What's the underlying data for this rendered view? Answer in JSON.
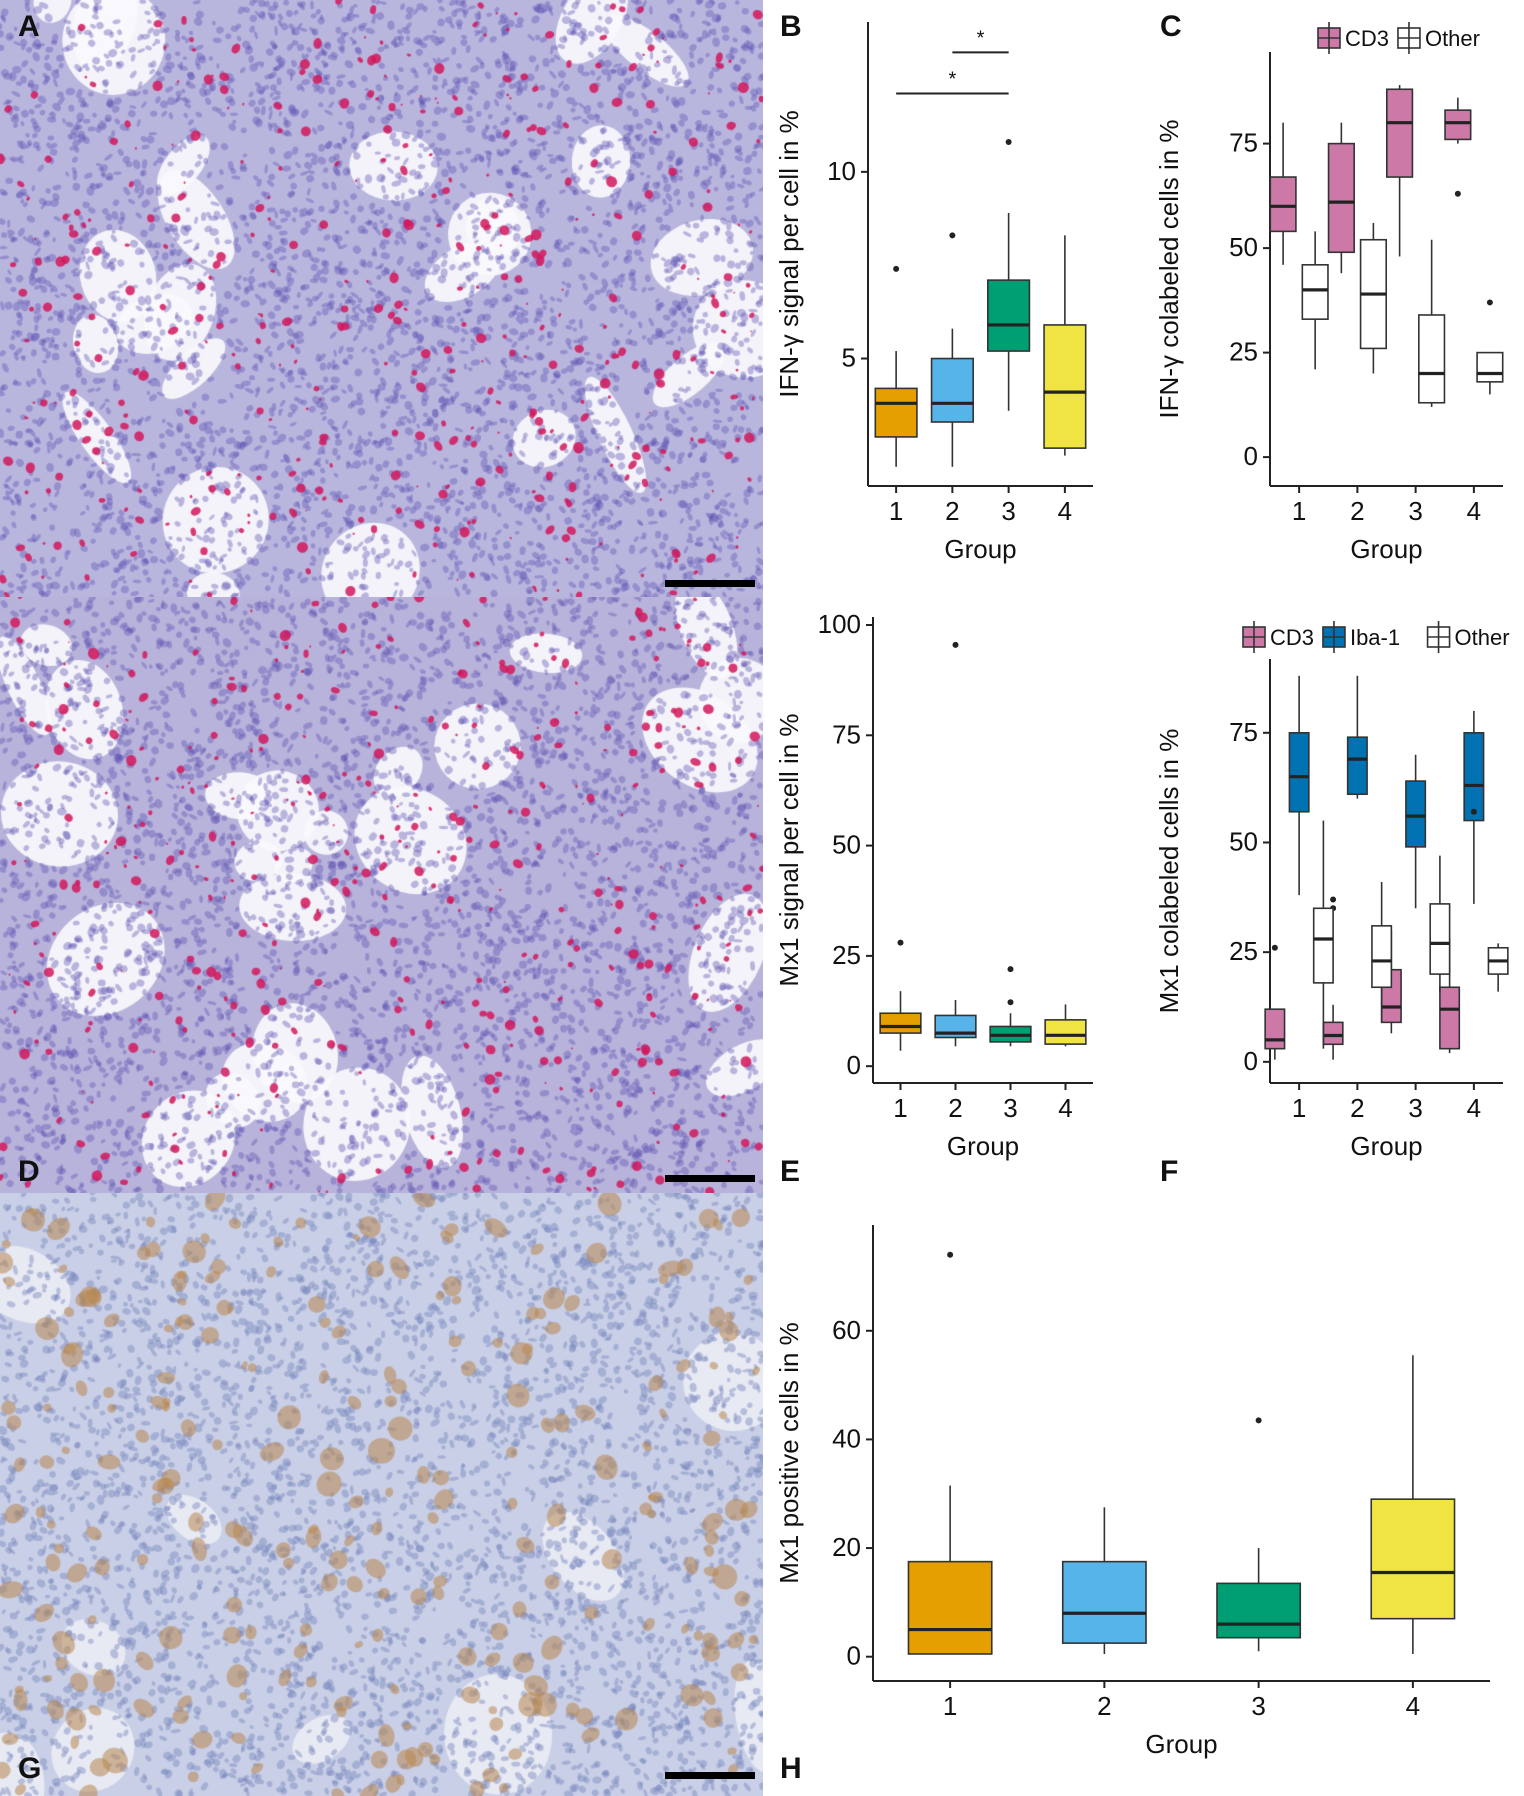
{
  "panels": {
    "A": {
      "letter": "A"
    },
    "B": {
      "letter": "B"
    },
    "C": {
      "letter": "C"
    },
    "D": {
      "letter": "D"
    },
    "E": {
      "letter": "E"
    },
    "F": {
      "letter": "F"
    },
    "G": {
      "letter": "G"
    },
    "H": {
      "letter": "H"
    }
  },
  "micrographs": {
    "A": {
      "stain": "purple counterstain with red ISH dots",
      "base_color": "#b9b6de",
      "signal_color": "#d2185c"
    },
    "D": {
      "stain": "purple counterstain with red ISH dots",
      "base_color": "#b8b3db",
      "signal_color": "#d2185c"
    },
    "G": {
      "stain": "blue counterstain with brown IHC",
      "base_color": "#c9cfe6",
      "signal_color": "#b8864e"
    }
  },
  "colors": {
    "group1": "#e69f00",
    "group2": "#56b4e9",
    "group3": "#009e73",
    "group4": "#f0e442",
    "cd3": "#cc79a7",
    "iba1": "#0072b2",
    "other": "#ffffff"
  },
  "chart_data": [
    {
      "panel": "B",
      "type": "box",
      "xlabel": "Group",
      "ylabel": "IFN-γ signal per cell in %",
      "categories": [
        "1",
        "2",
        "3",
        "4"
      ],
      "ylim": [
        1.8,
        13.8
      ],
      "yticks": [
        5,
        10
      ],
      "boxes": [
        {
          "category": "1",
          "whisker_low": 2.1,
          "q1": 2.9,
          "median": 3.8,
          "q3": 4.2,
          "whisker_high": 5.2,
          "outliers": [
            7.4
          ],
          "color_key": "group1"
        },
        {
          "category": "2",
          "whisker_low": 2.1,
          "q1": 3.3,
          "median": 3.8,
          "q3": 5.0,
          "whisker_high": 5.8,
          "outliers": [
            8.3
          ],
          "color_key": "group2"
        },
        {
          "category": "3",
          "whisker_low": 3.6,
          "q1": 5.2,
          "median": 5.9,
          "q3": 7.1,
          "whisker_high": 8.9,
          "outliers": [
            10.8
          ],
          "color_key": "group3"
        },
        {
          "category": "4",
          "whisker_low": 2.4,
          "q1": 2.6,
          "median": 4.1,
          "q3": 5.9,
          "whisker_high": 8.3,
          "outliers": [],
          "color_key": "group4"
        }
      ],
      "significance": [
        {
          "from": "1",
          "to": "3",
          "y": 12.1,
          "label": "*"
        },
        {
          "from": "2",
          "to": "3",
          "y": 13.2,
          "label": "*"
        }
      ]
    },
    {
      "panel": "C",
      "type": "box",
      "xlabel": "Group",
      "ylabel": "IFN-γ colabeled cells in %",
      "categories": [
        "1",
        "2",
        "3",
        "4"
      ],
      "ylim": [
        -5,
        95
      ],
      "yticks": [
        0,
        25,
        50,
        75
      ],
      "legend": {
        "position": "top-right",
        "entries": [
          {
            "label": "CD3",
            "color_key": "cd3"
          },
          {
            "label": "Other",
            "color_key": "other"
          }
        ]
      },
      "series": [
        {
          "name": "CD3",
          "color_key": "cd3",
          "boxes": [
            {
              "category": "1",
              "whisker_low": 46,
              "q1": 54,
              "median": 60,
              "q3": 67,
              "whisker_high": 80,
              "outliers": []
            },
            {
              "category": "2",
              "whisker_low": 44,
              "q1": 49,
              "median": 61,
              "q3": 75,
              "whisker_high": 80,
              "outliers": []
            },
            {
              "category": "3",
              "whisker_low": 48,
              "q1": 67,
              "median": 80,
              "q3": 88,
              "whisker_high": 89,
              "outliers": []
            },
            {
              "category": "4",
              "whisker_low": 75,
              "q1": 76,
              "median": 80,
              "q3": 83,
              "whisker_high": 86,
              "outliers": [
                63
              ]
            }
          ]
        },
        {
          "name": "Other",
          "color_key": "other",
          "boxes": [
            {
              "category": "1",
              "whisker_low": 21,
              "q1": 33,
              "median": 40,
              "q3": 46,
              "whisker_high": 54,
              "outliers": []
            },
            {
              "category": "2",
              "whisker_low": 20,
              "q1": 26,
              "median": 39,
              "q3": 52,
              "whisker_high": 56,
              "outliers": []
            },
            {
              "category": "3",
              "whisker_low": 12,
              "q1": 13,
              "median": 20,
              "q3": 34,
              "whisker_high": 52,
              "outliers": []
            },
            {
              "category": "4",
              "whisker_low": 15,
              "q1": 18,
              "median": 20,
              "q3": 25,
              "whisker_high": 25,
              "outliers": [
                37
              ]
            }
          ]
        }
      ]
    },
    {
      "panel": "E",
      "type": "box",
      "xlabel": "Group",
      "ylabel": "Mx1 signal per cell in %",
      "categories": [
        "1",
        "2",
        "3",
        "4"
      ],
      "ylim": [
        -2,
        100
      ],
      "yticks": [
        0,
        25,
        50,
        75,
        100
      ],
      "boxes": [
        {
          "category": "1",
          "whisker_low": 3.5,
          "q1": 7.5,
          "median": 9,
          "q3": 12,
          "whisker_high": 17,
          "outliers": [
            28
          ],
          "color_key": "group1"
        },
        {
          "category": "2",
          "whisker_low": 4.5,
          "q1": 6.5,
          "median": 7.5,
          "q3": 11.5,
          "whisker_high": 15,
          "outliers": [
            95.5
          ],
          "color_key": "group2"
        },
        {
          "category": "3",
          "whisker_low": 4.5,
          "q1": 5.5,
          "median": 7,
          "q3": 9,
          "whisker_high": 12,
          "outliers": [
            14.5,
            22
          ],
          "color_key": "group3"
        },
        {
          "category": "4",
          "whisker_low": 4.5,
          "q1": 5,
          "median": 7,
          "q3": 10.5,
          "whisker_high": 14,
          "outliers": [],
          "color_key": "group4"
        }
      ]
    },
    {
      "panel": "F",
      "type": "box",
      "xlabel": "Group",
      "ylabel": "Mx1 colabeled cells in %",
      "categories": [
        "1",
        "2",
        "3",
        "4"
      ],
      "ylim": [
        -3,
        90
      ],
      "yticks": [
        0,
        25,
        50,
        75
      ],
      "legend": {
        "position": "top-right",
        "entries": [
          {
            "label": "CD3",
            "color_key": "cd3"
          },
          {
            "label": "Iba-1",
            "color_key": "iba1"
          },
          {
            "label": "Other",
            "color_key": "other"
          }
        ]
      },
      "series": [
        {
          "name": "CD3",
          "color_key": "cd3",
          "boxes": [
            {
              "category": "1",
              "whisker_low": 0.5,
              "q1": 3,
              "median": 5,
              "q3": 12,
              "whisker_high": 12,
              "outliers": [
                26
              ]
            },
            {
              "category": "2",
              "whisker_low": 0.5,
              "q1": 4,
              "median": 6,
              "q3": 9,
              "whisker_high": 13,
              "outliers": [
                35,
                37
              ]
            },
            {
              "category": "3",
              "whisker_low": 6.5,
              "q1": 9,
              "median": 12.5,
              "q3": 21,
              "whisker_high": 30,
              "outliers": []
            },
            {
              "category": "4",
              "whisker_low": 2,
              "q1": 3,
              "median": 12,
              "q3": 17,
              "whisker_high": 28,
              "outliers": []
            }
          ]
        },
        {
          "name": "Iba-1",
          "color_key": "iba1",
          "boxes": [
            {
              "category": "1",
              "whisker_low": 38,
              "q1": 57,
              "median": 65,
              "q3": 75,
              "whisker_high": 88,
              "outliers": []
            },
            {
              "category": "2",
              "whisker_low": 60,
              "q1": 61,
              "median": 69,
              "q3": 74,
              "whisker_high": 88,
              "outliers": []
            },
            {
              "category": "3",
              "whisker_low": 35,
              "q1": 49,
              "median": 56,
              "q3": 64,
              "whisker_high": 70,
              "outliers": []
            },
            {
              "category": "4",
              "whisker_low": 36,
              "q1": 55,
              "median": 63,
              "q3": 75,
              "whisker_high": 80,
              "outliers": [
                57
              ]
            }
          ]
        },
        {
          "name": "Other",
          "color_key": "other",
          "boxes": [
            {
              "category": "1",
              "whisker_low": 3,
              "q1": 18,
              "median": 28,
              "q3": 35,
              "whisker_high": 55,
              "outliers": []
            },
            {
              "category": "2",
              "whisker_low": 9,
              "q1": 17,
              "median": 23,
              "q3": 31,
              "whisker_high": 41,
              "outliers": []
            },
            {
              "category": "3",
              "whisker_low": 16,
              "q1": 20,
              "median": 27,
              "q3": 36,
              "whisker_high": 47,
              "outliers": []
            },
            {
              "category": "4",
              "whisker_low": 16,
              "q1": 20,
              "median": 23,
              "q3": 26,
              "whisker_high": 27,
              "outliers": []
            }
          ]
        }
      ]
    },
    {
      "panel": "H",
      "type": "box",
      "xlabel": "Group",
      "ylabel": "Mx1 positive cells in %",
      "categories": [
        "1",
        "2",
        "3",
        "4"
      ],
      "ylim": [
        -3,
        78
      ],
      "yticks": [
        0,
        20,
        40,
        60
      ],
      "boxes": [
        {
          "category": "1",
          "whisker_low": 0.5,
          "q1": 0.5,
          "median": 5,
          "q3": 17.5,
          "whisker_high": 31.5,
          "outliers": [
            74
          ]
        },
        {
          "category": "2",
          "whisker_low": 0.5,
          "q1": 2.5,
          "median": 8,
          "q3": 17.5,
          "whisker_high": 27.5,
          "outliers": [],
          "color_key": "group2"
        },
        {
          "category": "3",
          "whisker_low": 1,
          "q1": 3.5,
          "median": 6,
          "q3": 13.5,
          "whisker_high": 20,
          "outliers": [
            43.5
          ],
          "color_key": "group3"
        },
        {
          "category": "4",
          "whisker_low": 0.5,
          "q1": 7,
          "median": 15.5,
          "q3": 29,
          "whisker_high": 55.5,
          "outliers": [],
          "color_key": "group4"
        }
      ]
    }
  ]
}
